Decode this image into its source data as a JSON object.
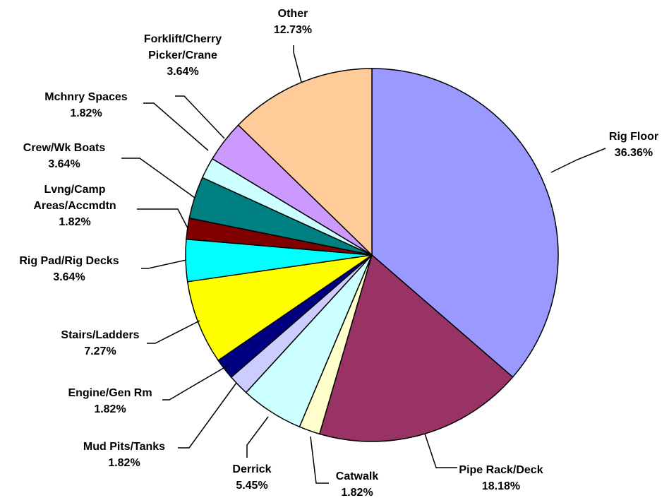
{
  "chart_data": {
    "type": "pie",
    "title": "",
    "start_angle_deg": 0,
    "direction": "clockwise",
    "slices": [
      {
        "label": "Rig Floor",
        "value": 36.36,
        "value_label": "36.36%",
        "color": "#9999ff"
      },
      {
        "label": "Pipe Rack/Deck",
        "value": 18.18,
        "value_label": "18.18%",
        "color": "#993366"
      },
      {
        "label": "Catwalk",
        "value": 1.82,
        "value_label": "1.82%",
        "color": "#ffffcc"
      },
      {
        "label": "Derrick",
        "value": 5.45,
        "value_label": "5.45%",
        "color": "#ccffff"
      },
      {
        "label": "Mud Pits/Tanks",
        "value": 1.82,
        "value_label": "1.82%",
        "color": "#ccccff"
      },
      {
        "label": "Engine/Gen Rm",
        "value": 1.82,
        "value_label": "1.82%",
        "color": "#000080"
      },
      {
        "label": "Stairs/Ladders",
        "value": 7.27,
        "value_label": "7.27%",
        "color": "#ffff00"
      },
      {
        "label": "Rig Pad/Rig Decks",
        "value": 3.64,
        "value_label": "3.64%",
        "color": "#00ffff"
      },
      {
        "label": "Lvng/Camp Areas/Accmdtn",
        "value": 1.82,
        "value_label": "1.82%",
        "color": "#800000"
      },
      {
        "label": "Crew/Wk Boats",
        "value": 3.64,
        "value_label": "3.64%",
        "color": "#008080"
      },
      {
        "label": "Mchnry Spaces",
        "value": 1.82,
        "value_label": "1.82%",
        "color": "#ccffff"
      },
      {
        "label": "Forklift/Cherry Picker/Crane",
        "value": 3.64,
        "value_label": "3.64%",
        "color": "#cc99ff"
      },
      {
        "label": "Other",
        "value": 12.73,
        "value_label": "12.73%",
        "color": "#ffcc99"
      }
    ]
  }
}
